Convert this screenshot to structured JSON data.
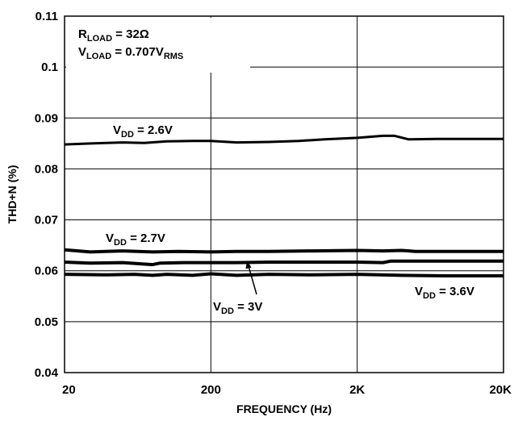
{
  "chart_data": {
    "type": "line",
    "title": "",
    "xlabel": "FREQUENCY (Hz)",
    "ylabel": "THD+N (%)",
    "x_scale": "log",
    "xlim": [
      20,
      20000
    ],
    "ylim": [
      0.04,
      0.11
    ],
    "x_ticks": [
      {
        "value": 20,
        "label": "20"
      },
      {
        "value": 200,
        "label": "200"
      },
      {
        "value": 2000,
        "label": "2K"
      },
      {
        "value": 20000,
        "label": "20K"
      }
    ],
    "y_ticks": [
      {
        "value": 0.04,
        "label": "0.04"
      },
      {
        "value": 0.05,
        "label": "0.05"
      },
      {
        "value": 0.06,
        "label": "0.06"
      },
      {
        "value": 0.07,
        "label": "0.07"
      },
      {
        "value": 0.08,
        "label": "0.08"
      },
      {
        "value": 0.09,
        "label": "0.09"
      },
      {
        "value": 0.1,
        "label": "0.1"
      },
      {
        "value": 0.11,
        "label": "0.11"
      }
    ],
    "grid": true,
    "conditions": [
      {
        "main": "R",
        "sub": "LOAD",
        "rest": " = 32Ω"
      },
      {
        "main": "V",
        "sub": "LOAD",
        "rest": " = 0.707V",
        "sub2": "RMS"
      }
    ],
    "series": [
      {
        "label": {
          "main": "V",
          "sub": "DD",
          "rest": " = 2.6V"
        },
        "points": [
          [
            20,
            0.0848
          ],
          [
            30,
            0.085
          ],
          [
            50,
            0.0852
          ],
          [
            70,
            0.0851
          ],
          [
            100,
            0.0854
          ],
          [
            150,
            0.0855
          ],
          [
            200,
            0.0855
          ],
          [
            300,
            0.0852
          ],
          [
            500,
            0.0853
          ],
          [
            800,
            0.0855
          ],
          [
            1200,
            0.0858
          ],
          [
            2000,
            0.0861
          ],
          [
            3000,
            0.0865
          ],
          [
            3600,
            0.0865
          ],
          [
            4500,
            0.0858
          ],
          [
            7000,
            0.0859
          ],
          [
            20000,
            0.0859
          ]
        ]
      },
      {
        "label": {
          "main": "V",
          "sub": "DD",
          "rest": " = 2.7V"
        },
        "points": [
          [
            20,
            0.0641
          ],
          [
            30,
            0.0637
          ],
          [
            50,
            0.0639
          ],
          [
            80,
            0.0637
          ],
          [
            120,
            0.0638
          ],
          [
            200,
            0.0637
          ],
          [
            300,
            0.0638
          ],
          [
            500,
            0.0638
          ],
          [
            1000,
            0.0639
          ],
          [
            2000,
            0.064
          ],
          [
            3000,
            0.0639
          ],
          [
            4000,
            0.064
          ],
          [
            5000,
            0.0638
          ],
          [
            10000,
            0.0638
          ],
          [
            20000,
            0.0638
          ]
        ]
      },
      {
        "label": {
          "main": "V",
          "sub": "DD",
          "rest": " = 3V"
        },
        "points": [
          [
            20,
            0.0617
          ],
          [
            30,
            0.0615
          ],
          [
            50,
            0.0616
          ],
          [
            80,
            0.0612
          ],
          [
            90,
            0.0615
          ],
          [
            130,
            0.0616
          ],
          [
            200,
            0.0616
          ],
          [
            300,
            0.0616
          ],
          [
            500,
            0.0617
          ],
          [
            1000,
            0.0617
          ],
          [
            2000,
            0.0617
          ],
          [
            3000,
            0.0616
          ],
          [
            3400,
            0.0619
          ],
          [
            5000,
            0.0619
          ],
          [
            10000,
            0.0619
          ],
          [
            20000,
            0.0619
          ]
        ]
      },
      {
        "label": {
          "main": "V",
          "sub": "DD",
          "rest": " = 3.6V"
        },
        "points": [
          [
            20,
            0.0593
          ],
          [
            40,
            0.0592
          ],
          [
            60,
            0.0593
          ],
          [
            80,
            0.0591
          ],
          [
            100,
            0.0593
          ],
          [
            150,
            0.0591
          ],
          [
            200,
            0.0594
          ],
          [
            300,
            0.0591
          ],
          [
            500,
            0.0593
          ],
          [
            1000,
            0.0592
          ],
          [
            2000,
            0.0593
          ],
          [
            4000,
            0.0591
          ],
          [
            8000,
            0.059
          ],
          [
            20000,
            0.059
          ]
        ]
      }
    ]
  }
}
